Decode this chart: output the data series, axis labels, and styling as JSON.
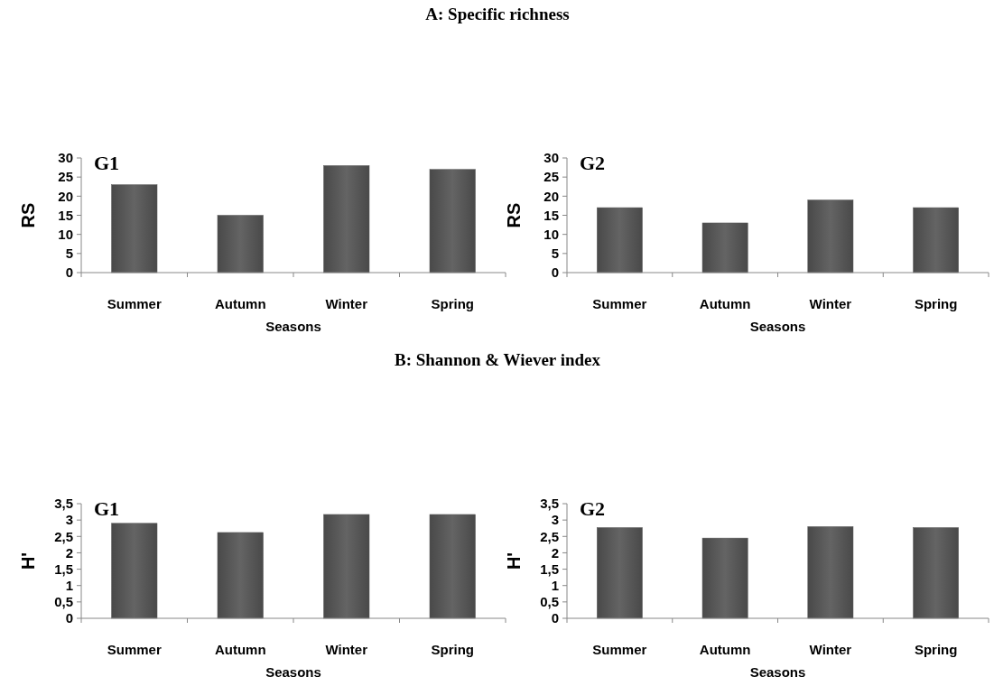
{
  "chart_data": [
    {
      "type": "bar",
      "title": "G1",
      "annotations": [
        "A: Specific richness"
      ],
      "categories": [
        "Summer",
        "Autumn",
        "Winter",
        "Spring"
      ],
      "values": [
        23,
        15,
        28,
        27
      ],
      "color": "#5a5a5a",
      "xlabel": "Seasons",
      "ylabel": "RS",
      "ylim": [
        0,
        30
      ],
      "yticks": [
        0,
        5,
        10,
        15,
        20,
        25,
        30
      ]
    },
    {
      "type": "bar",
      "title": "G2",
      "categories": [
        "Summer",
        "Autumn",
        "Winter",
        "Spring"
      ],
      "values": [
        17,
        13,
        19,
        17
      ],
      "color": "#5a5a5a",
      "xlabel": "Seasons",
      "ylabel": "RS",
      "ylim": [
        0,
        30
      ],
      "yticks": [
        0,
        5,
        10,
        15,
        20,
        25,
        30
      ]
    },
    {
      "type": "bar",
      "title": "G1",
      "annotations": [
        "B: Shannon & Wiever index"
      ],
      "categories": [
        "Summer",
        "Autumn",
        "Winter",
        "Spring"
      ],
      "values": [
        2.9,
        2.62,
        3.17,
        3.17
      ],
      "color": "#5a5a5a",
      "xlabel": "Seasons",
      "ylabel": "H'",
      "ylim": [
        0,
        3.5
      ],
      "yticks": [
        0,
        {
          "value": 0.5,
          "label": "0,5"
        },
        1,
        {
          "value": 1.5,
          "label": "1,5"
        },
        2,
        {
          "value": 2.5,
          "label": "2,5"
        },
        3,
        {
          "value": 3.5,
          "label": "3,5"
        }
      ]
    },
    {
      "type": "bar",
      "title": "G2",
      "categories": [
        "Summer",
        "Autumn",
        "Winter",
        "Spring"
      ],
      "values": [
        2.77,
        2.45,
        2.8,
        2.77
      ],
      "color": "#5a5a5a",
      "xlabel": "Seasons",
      "ylabel": "H'",
      "ylim": [
        0,
        3.5
      ],
      "yticks": [
        0,
        {
          "value": 0.5,
          "label": "0,5"
        },
        1,
        {
          "value": 1.5,
          "label": "1,5"
        },
        2,
        {
          "value": 2.5,
          "label": "2,5"
        },
        3,
        {
          "value": 3.5,
          "label": "3,5"
        }
      ]
    }
  ]
}
